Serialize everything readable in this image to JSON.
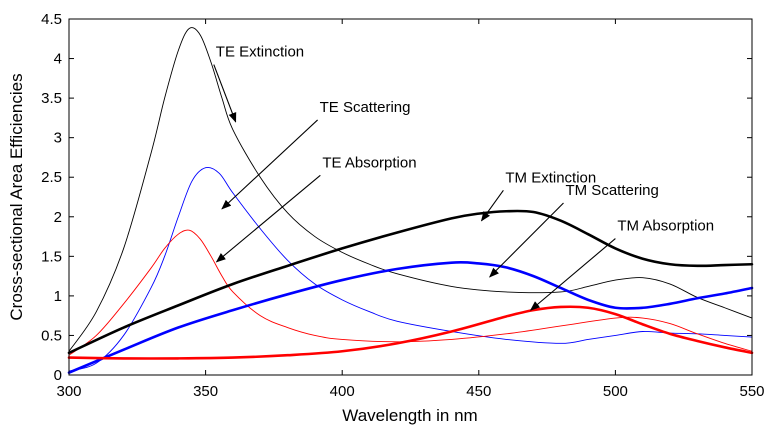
{
  "chart_data": {
    "type": "line",
    "title": "",
    "xlabel": "Wavelength in nm",
    "ylabel": "Cross-sectional Area Efficiencies",
    "xlim": [
      300,
      550
    ],
    "ylim": [
      0,
      4.5
    ],
    "xticks": [
      300,
      350,
      400,
      450,
      500,
      550
    ],
    "yticks": [
      0,
      0.5,
      1,
      1.5,
      2,
      2.5,
      3,
      3.5,
      4,
      4.5
    ],
    "xtick_labels": [
      "300",
      "350",
      "400",
      "450",
      "500",
      "550"
    ],
    "ytick_labels": [
      "0",
      "0.5",
      "1",
      "1.5",
      "2",
      "2.5",
      "3",
      "3.5",
      "4",
      "4.5"
    ],
    "grid": false,
    "legend": "none",
    "series": [
      {
        "name": "TE Extinction",
        "color": "#000000",
        "weight": "thin",
        "x": [
          300,
          310,
          320,
          330,
          335,
          340,
          344,
          348,
          352,
          356,
          360,
          370,
          380,
          390,
          400,
          410,
          420,
          440,
          460,
          480,
          490,
          500,
          510,
          520,
          530,
          540,
          550
        ],
        "y": [
          0.3,
          0.8,
          1.6,
          2.8,
          3.5,
          4.1,
          4.38,
          4.3,
          3.95,
          3.5,
          3.1,
          2.5,
          2.05,
          1.75,
          1.55,
          1.4,
          1.28,
          1.12,
          1.05,
          1.05,
          1.12,
          1.2,
          1.23,
          1.15,
          0.98,
          0.85,
          0.72
        ]
      },
      {
        "name": "TE Scattering",
        "color": "#0000ff",
        "weight": "thin",
        "x": [
          300,
          310,
          320,
          330,
          335,
          340,
          345,
          350,
          355,
          360,
          370,
          380,
          390,
          400,
          410,
          420,
          440,
          460,
          480,
          490,
          500,
          510,
          520,
          530,
          540,
          550
        ],
        "y": [
          0.05,
          0.15,
          0.5,
          1.1,
          1.5,
          2.0,
          2.45,
          2.62,
          2.55,
          2.3,
          1.85,
          1.45,
          1.15,
          0.95,
          0.8,
          0.68,
          0.55,
          0.45,
          0.4,
          0.45,
          0.5,
          0.55,
          0.53,
          0.52,
          0.5,
          0.48
        ]
      },
      {
        "name": "TE Absorption",
        "color": "#ff0000",
        "weight": "thin",
        "x": [
          300,
          310,
          320,
          330,
          335,
          340,
          344,
          348,
          352,
          356,
          360,
          370,
          380,
          390,
          400,
          420,
          440,
          460,
          480,
          500,
          510,
          520,
          530,
          540,
          550
        ],
        "y": [
          0.25,
          0.5,
          0.9,
          1.35,
          1.6,
          1.78,
          1.83,
          1.72,
          1.5,
          1.25,
          1.05,
          0.75,
          0.6,
          0.5,
          0.45,
          0.42,
          0.45,
          0.52,
          0.62,
          0.72,
          0.72,
          0.65,
          0.52,
          0.4,
          0.3
        ]
      },
      {
        "name": "TM Extinction",
        "color": "#000000",
        "weight": "bold",
        "x": [
          300,
          320,
          340,
          360,
          380,
          400,
          420,
          440,
          450,
          460,
          470,
          480,
          490,
          500,
          510,
          520,
          530,
          540,
          550
        ],
        "y": [
          0.28,
          0.6,
          0.88,
          1.15,
          1.38,
          1.6,
          1.8,
          1.98,
          2.04,
          2.07,
          2.06,
          1.95,
          1.78,
          1.6,
          1.47,
          1.4,
          1.38,
          1.39,
          1.4
        ]
      },
      {
        "name": "TM Scattering",
        "color": "#0000ff",
        "weight": "bold",
        "x": [
          300,
          320,
          340,
          360,
          380,
          400,
          420,
          440,
          450,
          460,
          470,
          480,
          490,
          500,
          510,
          520,
          530,
          540,
          550
        ],
        "y": [
          0.03,
          0.32,
          0.6,
          0.82,
          1.02,
          1.2,
          1.34,
          1.42,
          1.41,
          1.36,
          1.25,
          1.1,
          0.95,
          0.85,
          0.85,
          0.9,
          0.97,
          1.03,
          1.1
        ]
      },
      {
        "name": "TM Absorption",
        "color": "#ff0000",
        "weight": "bold",
        "x": [
          300,
          320,
          340,
          360,
          380,
          400,
          420,
          440,
          460,
          470,
          480,
          490,
          500,
          510,
          520,
          530,
          540,
          550
        ],
        "y": [
          0.22,
          0.21,
          0.21,
          0.22,
          0.25,
          0.3,
          0.4,
          0.55,
          0.74,
          0.82,
          0.86,
          0.85,
          0.77,
          0.64,
          0.52,
          0.43,
          0.35,
          0.28
        ]
      }
    ],
    "annotations": [
      {
        "text": "TE Extinction",
        "label_x": 353,
        "label_y": 4.0,
        "arrow_x": 361,
        "arrow_y": 3.2
      },
      {
        "text": "TE Scattering",
        "label_x": 391,
        "label_y": 3.3,
        "arrow_x": 356,
        "arrow_y": 2.1
      },
      {
        "text": "TE Absorption",
        "label_x": 392,
        "label_y": 2.6,
        "arrow_x": 354,
        "arrow_y": 1.43
      },
      {
        "text": "TM Extinction",
        "label_x": 459,
        "label_y": 2.41,
        "arrow_x": 451,
        "arrow_y": 1.95
      },
      {
        "text": "TM Scattering",
        "label_x": 481,
        "label_y": 2.25,
        "arrow_x": 454,
        "arrow_y": 1.24
      },
      {
        "text": "TM Absorption",
        "label_x": 500,
        "label_y": 1.8,
        "arrow_x": 469,
        "arrow_y": 0.82
      }
    ]
  }
}
